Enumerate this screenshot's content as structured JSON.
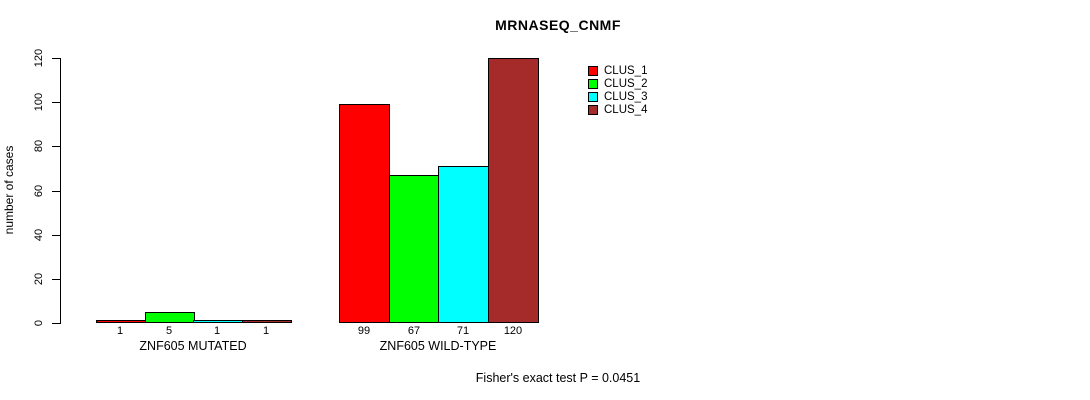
{
  "chart_data": {
    "type": "bar",
    "title": "MRNASEQ_CNMF",
    "ylabel": "number of cases",
    "xlabel": "",
    "ylim": [
      0,
      120
    ],
    "yticks": [
      0,
      20,
      40,
      60,
      80,
      100,
      120
    ],
    "grid": false,
    "legend_position": "top-right-inside",
    "categories": [
      "ZNF605 MUTATED",
      "ZNF605 WILD-TYPE"
    ],
    "series": [
      {
        "name": "CLUS_1",
        "color": "#ff0000",
        "values": [
          1,
          99
        ]
      },
      {
        "name": "CLUS_2",
        "color": "#00ff00",
        "values": [
          5,
          67
        ]
      },
      {
        "name": "CLUS_3",
        "color": "#00ffff",
        "values": [
          1,
          71
        ]
      },
      {
        "name": "CLUS_4",
        "color": "#a52a2a",
        "values": [
          1,
          120
        ]
      }
    ],
    "bar_value_labels": [
      [
        "1",
        "5",
        "1",
        "1"
      ],
      [
        "99",
        "67",
        "71",
        "120"
      ]
    ],
    "annotation": "Fisher's exact test P = 0.0451"
  }
}
